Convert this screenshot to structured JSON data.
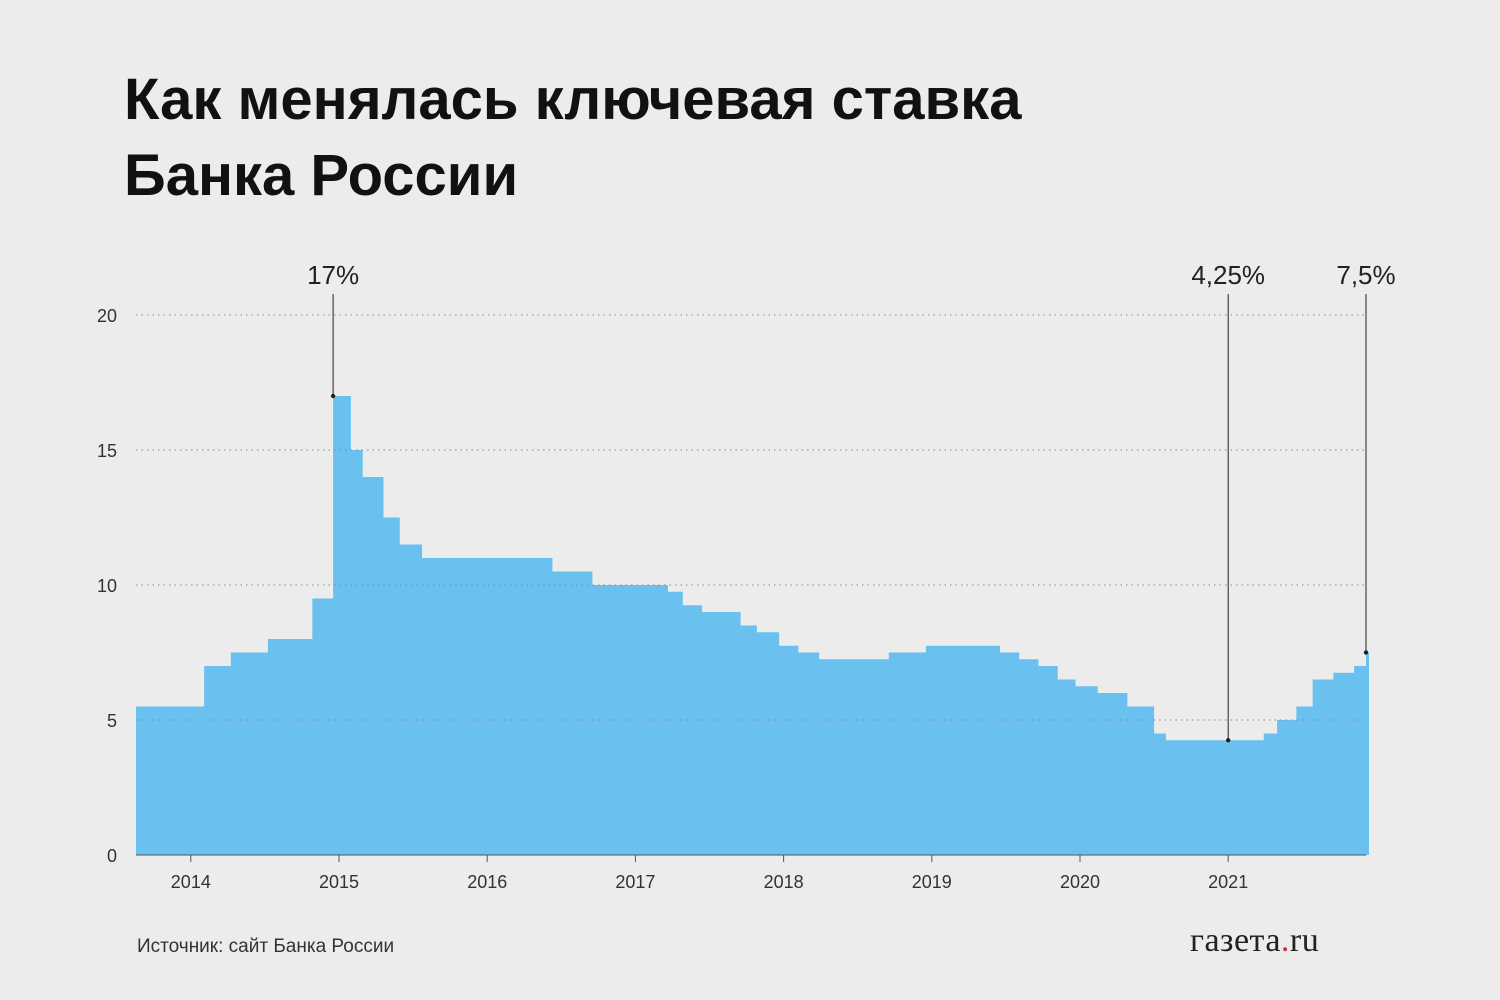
{
  "title_line1": "Как менялась ключевая ставка",
  "title_line2": "Банка России",
  "source": "Источник: сайт Банка России",
  "logo": {
    "left": "газета",
    "dot": ".",
    "right": "ru"
  },
  "colors": {
    "fill": "#6ac1f0",
    "grid": "#888888",
    "text": "#333333",
    "logo_dot": "#d62b2b"
  },
  "chart_data": {
    "type": "area",
    "step": true,
    "ylim": [
      0,
      20
    ],
    "yticks": [
      0,
      5,
      10,
      15,
      20
    ],
    "xlim": [
      2013.63,
      2021.93
    ],
    "xticks": [
      {
        "value": 2014,
        "label": "2014"
      },
      {
        "value": 2015,
        "label": "2015"
      },
      {
        "value": 2016,
        "label": "2016"
      },
      {
        "value": 2017,
        "label": "2017"
      },
      {
        "value": 2018,
        "label": "2018"
      },
      {
        "value": 2019,
        "label": "2019"
      },
      {
        "value": 2020,
        "label": "2020"
      },
      {
        "value": 2021,
        "label": "2021"
      }
    ],
    "grid": true,
    "series": [
      {
        "points": [
          [
            2013.63,
            5.5
          ],
          [
            2014.09,
            7.0
          ],
          [
            2014.27,
            7.5
          ],
          [
            2014.52,
            8.0
          ],
          [
            2014.82,
            9.5
          ],
          [
            2014.96,
            17.0
          ],
          [
            2015.08,
            15.0
          ],
          [
            2015.16,
            14.0
          ],
          [
            2015.3,
            12.5
          ],
          [
            2015.41,
            11.5
          ],
          [
            2015.56,
            11.0
          ],
          [
            2016.44,
            10.5
          ],
          [
            2016.71,
            10.0
          ],
          [
            2017.22,
            9.75
          ],
          [
            2017.32,
            9.25
          ],
          [
            2017.45,
            9.0
          ],
          [
            2017.71,
            8.5
          ],
          [
            2017.82,
            8.25
          ],
          [
            2017.97,
            7.75
          ],
          [
            2018.1,
            7.5
          ],
          [
            2018.24,
            7.25
          ],
          [
            2018.71,
            7.5
          ],
          [
            2018.96,
            7.75
          ],
          [
            2019.46,
            7.5
          ],
          [
            2019.59,
            7.25
          ],
          [
            2019.72,
            7.0
          ],
          [
            2019.85,
            6.5
          ],
          [
            2019.97,
            6.25
          ],
          [
            2020.12,
            6.0
          ],
          [
            2020.32,
            5.5
          ],
          [
            2020.5,
            4.5
          ],
          [
            2020.58,
            4.25
          ],
          [
            2021.24,
            4.5
          ],
          [
            2021.33,
            5.0
          ],
          [
            2021.46,
            5.5
          ],
          [
            2021.57,
            6.5
          ],
          [
            2021.71,
            6.75
          ],
          [
            2021.85,
            7.0
          ],
          [
            2021.93,
            7.5
          ]
        ]
      }
    ],
    "annotations": [
      {
        "x": 2014.96,
        "y": 17.0,
        "label": "17%"
      },
      {
        "x": 2021.0,
        "y": 4.25,
        "label": "4,25%"
      },
      {
        "x": 2021.93,
        "y": 7.5,
        "label": "7,5%"
      }
    ]
  }
}
